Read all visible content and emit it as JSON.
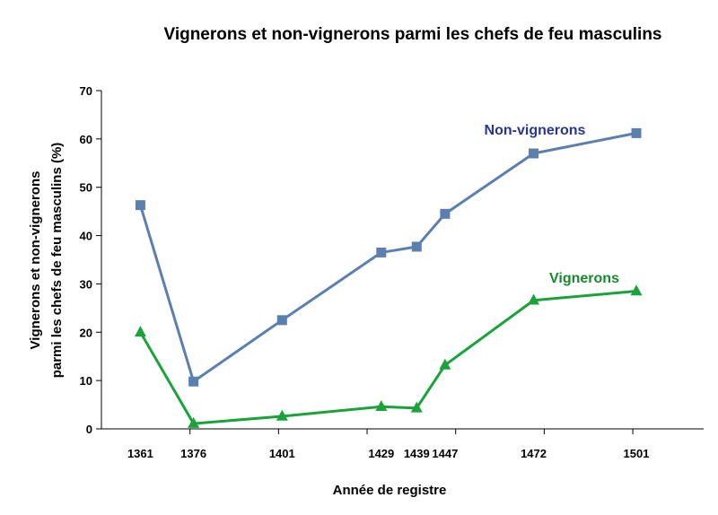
{
  "chart_data": {
    "type": "line",
    "title": "Vignerons et non-vignerons parmi les chefs de feu masculins",
    "xlabel": "Année de registre",
    "ylabel_line1": "Vignerons et non-vignerons",
    "ylabel_line2": "parmi les chefs de feu masculins (%)",
    "ylim": [
      0,
      70
    ],
    "yticks": [
      0,
      10,
      20,
      30,
      40,
      50,
      60,
      70
    ],
    "xlim": [
      1350,
      1520
    ],
    "xticks": [
      1361,
      1376,
      1401,
      1429,
      1439,
      1447,
      1472,
      1501
    ],
    "grid": false,
    "series": [
      {
        "name": "Non-vignerons",
        "color": "#5b7faf",
        "label_color": "#2a3591",
        "marker": "square",
        "x": [
          1361,
          1376,
          1401,
          1429,
          1439,
          1447,
          1472,
          1501
        ],
        "values": [
          46.3,
          9.8,
          22.5,
          36.5,
          37.7,
          44.5,
          57.0,
          61.2
        ]
      },
      {
        "name": "Vignerons",
        "color": "#1aa33a",
        "label_color": "#178a2e",
        "marker": "triangle",
        "x": [
          1361,
          1376,
          1401,
          1429,
          1439,
          1447,
          1472,
          1501
        ],
        "values": [
          20.0,
          1.1,
          2.6,
          4.6,
          4.3,
          13.2,
          26.6,
          28.5
        ]
      }
    ]
  }
}
